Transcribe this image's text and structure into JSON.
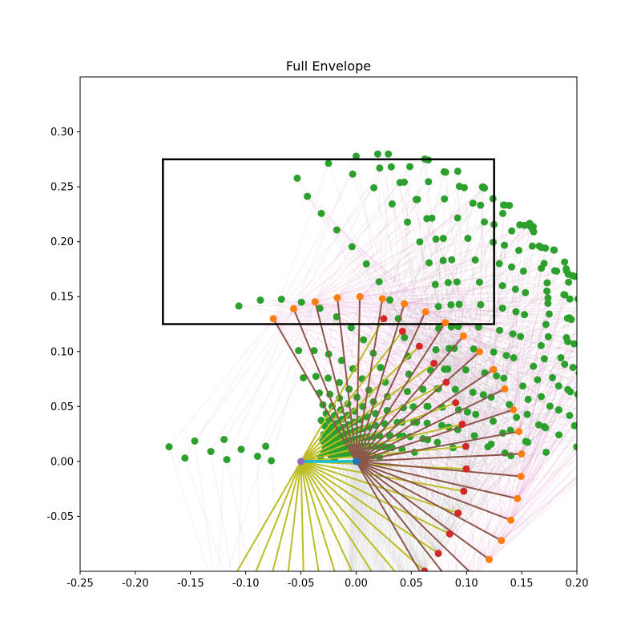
{
  "chart_data": {
    "type": "scatter",
    "title": "Full Envelope",
    "xlabel": "",
    "ylabel": "",
    "xlim": [
      -0.25,
      0.2
    ],
    "ylim": [
      -0.1,
      0.35
    ],
    "x_ticks": [
      "-0.25",
      "-0.20",
      "-0.15",
      "-0.10",
      "-0.05",
      "0.00",
      "0.05",
      "0.10",
      "0.15",
      "0.20"
    ],
    "x_tick_values": [
      -0.25,
      -0.2,
      -0.15,
      -0.1,
      -0.05,
      0.0,
      0.05,
      0.1,
      0.15,
      0.2
    ],
    "y_ticks": [
      "-0.05",
      "0.00",
      "0.05",
      "0.10",
      "0.15",
      "0.20",
      "0.25",
      "0.30"
    ],
    "y_tick_values": [
      -0.05,
      0.0,
      0.05,
      0.1,
      0.15,
      0.2,
      0.25,
      0.3
    ],
    "grid": false,
    "rectangle": {
      "x0": -0.175,
      "y0": 0.125,
      "x1": 0.125,
      "y1": 0.275
    },
    "base_link": {
      "x0": -0.05,
      "y0": 0.0,
      "x1": 0.0,
      "y1": 0.0
    },
    "left_base": [
      -0.05,
      0.0
    ],
    "right_base": [
      0.0,
      0.0
    ],
    "link_length": 0.15,
    "left_elbow_angle_range_deg": [
      -120,
      60
    ],
    "right_elbow_angle_range_deg": [
      120,
      -60
    ],
    "elbow_count": 24,
    "colors": {
      "envelope_points": "#2ca02c",
      "left_elbows": "#d62728",
      "right_elbows": "#ff7f0e",
      "left_links": "#bcbd22",
      "right_links": "#8c564b",
      "left_fan": "#bbbbbb",
      "right_fan": "#e377c2",
      "base_link": "#17becf",
      "left_base": "#9467bd",
      "right_base": "#1f77b4",
      "rectangle": "#000000"
    }
  }
}
